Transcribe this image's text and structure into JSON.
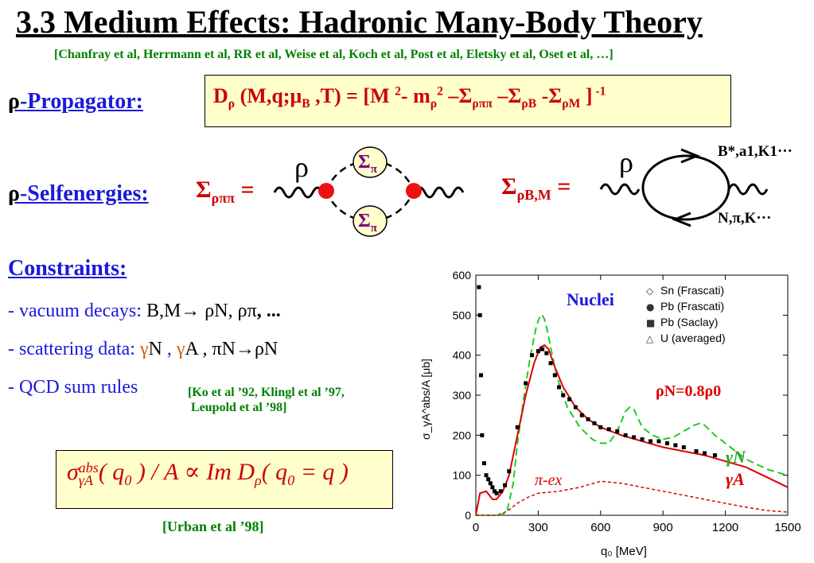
{
  "title": "3.3  Medium Effects: Hadronic Many-Body Theory",
  "references": "[Chanfray et al, Herrmann et al, RR et al, Weise et al, Koch et al, Post et al, Eletsky et al, Oset et al, …]",
  "propagator": {
    "label_rho": "ρ",
    "label_text": "-Propagator:",
    "formula": {
      "d": "D",
      "rho": "ρ",
      "args_a": " (M,q;μ",
      "b": "B",
      "args_b": " ,T) = [M ",
      "sq": "2",
      "minus_m": "- m",
      "m_sub": "ρ",
      "m_sup": "2",
      "s1": " –Σ",
      "s1_sub": "ρππ",
      "s2": " –Σ",
      "s2_sub": "ρB",
      "s3": " -Σ",
      "s3_sub": "ρM",
      "close": " ]",
      "inv": " -1"
    }
  },
  "selfenergies": {
    "label_rho": "ρ",
    "label_text": "-Selfenergies:",
    "sigma_rpp": "Σ",
    "sigma_rpp_sub": "ρππ",
    "sigma_rpp_eq": " =",
    "sigma_rbm": "Σ",
    "sigma_rbm_sub": "ρB,M",
    "sigma_rbm_eq": " =",
    "left_diagram": {
      "rho": "ρ",
      "sigma_top": "Σ",
      "sigma_top_sub": "π",
      "sigma_bot": "Σ",
      "sigma_bot_sub": "π"
    },
    "right_diagram": {
      "rho": "ρ",
      "top_label": "B*,a1,K1···",
      "bottom_label": "N,π,K···"
    }
  },
  "constraints": {
    "heading": "Constraints:",
    "line1_prefix": "- vacuum decays:  ",
    "line1_a": "B,M→ ρN, ρπ",
    "line1_b": ", ...",
    "line2_prefix": "- scattering data:  ",
    "line2_g1": "γ",
    "line2_a": "N ",
    "line2_comma1": ", ",
    "line2_g2": "γ",
    "line2_b": "A , πN→ρN",
    "line3_prefix": "- QCD sum rules ",
    "line3_ref1": "[Ko et al ’92, Klingl et al ’97,",
    "line3_ref2": "Leupold et al ’98]"
  },
  "cross_section": {
    "sigma": "σ",
    "sup": "abs",
    "sub": "γA",
    "rest1": "( q",
    "q_sub": "0",
    "rest2": " ) / A  ∝  Im D",
    "d_sub": "ρ",
    "rest3": "( q",
    "q2_sub": "0",
    "rest4": " = q )",
    "ref": "[Urban et al ’98]"
  },
  "chart_data": {
    "type": "line",
    "xlabel": "q₀ [MeV]",
    "ylabel": "σ_γA^abs/A [μb]",
    "xlim": [
      0,
      1500
    ],
    "ylim": [
      0,
      600
    ],
    "xticks": [
      0,
      300,
      600,
      900,
      1200,
      1500
    ],
    "yticks": [
      0,
      100,
      200,
      300,
      400,
      500,
      600
    ],
    "annotations": {
      "nuclei": "Nuclei",
      "density": "ρN=0.8ρ0",
      "gammaN": "γN",
      "gammaA": "γA",
      "piex": "π-ex"
    },
    "legend": [
      {
        "marker": "◇",
        "label": "Sn (Frascati)"
      },
      {
        "marker": "●",
        "label": "Pb (Frascati)"
      },
      {
        "marker": "■",
        "label": "Pb (Saclay)"
      },
      {
        "marker": "△",
        "label": "U  (averaged)"
      }
    ],
    "series": [
      {
        "name": "γN",
        "style": "green-dashed",
        "color": "#22cc22",
        "x": [
          0,
          120,
          150,
          180,
          200,
          230,
          260,
          290,
          310,
          320,
          330,
          340,
          360,
          380,
          400,
          440,
          500,
          560,
          600,
          640,
          680,
          720,
          740,
          760,
          800,
          850,
          900,
          950,
          1000,
          1050,
          1080,
          1100,
          1150,
          1200,
          1250,
          1300,
          1400,
          1500
        ],
        "y": [
          0,
          0,
          10,
          80,
          180,
          290,
          390,
          470,
          500,
          500,
          490,
          470,
          420,
          370,
          330,
          270,
          220,
          190,
          180,
          180,
          210,
          260,
          270,
          265,
          220,
          200,
          190,
          195,
          210,
          225,
          230,
          225,
          200,
          180,
          160,
          140,
          115,
          100
        ]
      },
      {
        "name": "γA",
        "style": "red-solid",
        "color": "#dd0000",
        "x": [
          0,
          20,
          50,
          80,
          100,
          130,
          160,
          200,
          240,
          280,
          310,
          330,
          350,
          380,
          420,
          480,
          540,
          600,
          700,
          800,
          900,
          1000,
          1100,
          1200,
          1300,
          1400,
          1500
        ],
        "y": [
          0,
          55,
          60,
          40,
          40,
          60,
          100,
          200,
          300,
          380,
          420,
          425,
          415,
          370,
          320,
          270,
          240,
          220,
          200,
          185,
          170,
          160,
          150,
          135,
          120,
          95,
          70
        ]
      },
      {
        "name": "π-ex",
        "style": "red-dotted",
        "color": "#dd0000",
        "x": [
          0,
          50,
          100,
          150,
          200,
          250,
          300,
          400,
          500,
          600,
          700,
          800,
          900,
          1000,
          1100,
          1200,
          1300,
          1400,
          1500
        ],
        "y": [
          0,
          0,
          0,
          10,
          30,
          45,
          55,
          60,
          70,
          85,
          80,
          70,
          60,
          50,
          40,
          30,
          20,
          12,
          8
        ]
      },
      {
        "name": "data",
        "style": "black-markers",
        "color": "#000000",
        "x": [
          15,
          20,
          25,
          30,
          40,
          50,
          60,
          70,
          80,
          90,
          100,
          120,
          140,
          160,
          200,
          240,
          270,
          300,
          320,
          340,
          360,
          380,
          400,
          420,
          450,
          480,
          510,
          540,
          570,
          600,
          640,
          680,
          720,
          760,
          800,
          840,
          880,
          920,
          960,
          1000,
          1060,
          1100,
          1150
        ],
        "y": [
          570,
          500,
          350,
          200,
          130,
          100,
          90,
          80,
          70,
          60,
          55,
          60,
          75,
          110,
          220,
          330,
          400,
          410,
          415,
          405,
          380,
          350,
          320,
          300,
          290,
          270,
          250,
          240,
          230,
          220,
          215,
          210,
          200,
          195,
          190,
          185,
          185,
          180,
          175,
          170,
          160,
          155,
          150
        ]
      }
    ]
  }
}
